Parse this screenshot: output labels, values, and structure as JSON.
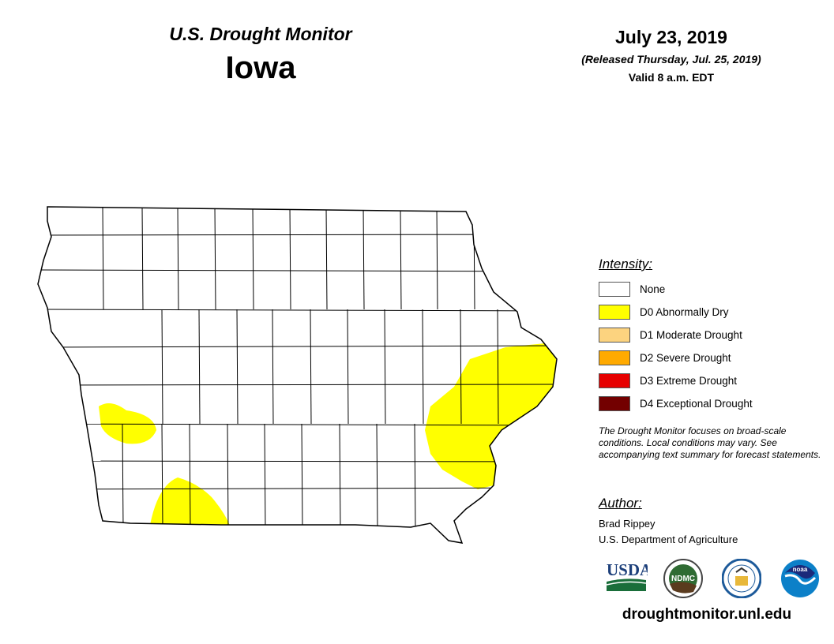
{
  "header": {
    "title": "U.S. Drought Monitor",
    "state": "Iowa",
    "date": "July 23, 2019",
    "released": "(Released Thursday, Jul. 25, 2019)",
    "valid": "Valid 8 a.m. EDT"
  },
  "legend": {
    "title": "Intensity:",
    "items": [
      {
        "label": "None",
        "color": "#ffffff"
      },
      {
        "label": "D0 Abnormally Dry",
        "color": "#ffff00"
      },
      {
        "label": "D1 Moderate Drought",
        "color": "#fcd37f"
      },
      {
        "label": "D2 Severe Drought",
        "color": "#ffaa00"
      },
      {
        "label": "D3 Extreme Drought",
        "color": "#e60000"
      },
      {
        "label": "D4 Exceptional Drought",
        "color": "#730000"
      }
    ]
  },
  "note": "The Drought Monitor focuses on broad-scale conditions. Local conditions may vary. See accompanying text summary for forecast statements.",
  "author": {
    "title": "Author:",
    "name": "Brad Rippey",
    "org": "U.S. Department of Agriculture"
  },
  "logos": {
    "usda": "USDA",
    "ndmc": "NDMC",
    "noaa": "noaa"
  },
  "url": "droughtmonitor.unl.edu",
  "map": {
    "regions": [
      {
        "area": "east-central Iowa",
        "category": "D0"
      },
      {
        "area": "southwest Iowa",
        "category": "D0"
      },
      {
        "area": "south-central Iowa",
        "category": "D0"
      }
    ]
  }
}
